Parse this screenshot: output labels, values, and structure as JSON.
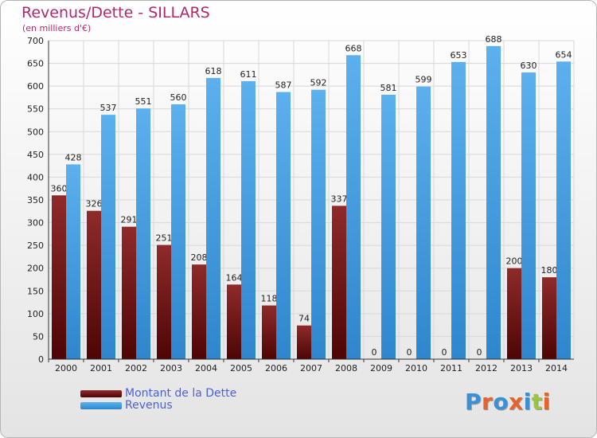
{
  "title": "Revenus/Dette - SILLARS",
  "subtitle": "(en milliers d'€)",
  "colors": {
    "title": "#b0286e",
    "dette": "#6e1010",
    "revenus": "#4da5e8",
    "legend_text": "#4a62d8"
  },
  "logo": {
    "text": "Proxiti",
    "letters": [
      "P",
      "r",
      "o",
      "x",
      "i",
      "t",
      "i"
    ],
    "colors": [
      "#3a8fd9",
      "#e8632a",
      "#3a8fd9",
      "#e8632a",
      "#3a8fd9",
      "#9bc53d",
      "#e8632a"
    ]
  },
  "legend": [
    {
      "label": "Montant de la Dette",
      "color_key": "dette"
    },
    {
      "label": "Revenus",
      "color_key": "revenus"
    }
  ],
  "chart_data": {
    "type": "bar",
    "title": "Revenus/Dette - SILLARS",
    "subtitle": "(en milliers d'€)",
    "xlabel": "",
    "ylabel": "",
    "ylim": [
      0,
      700
    ],
    "yticks": [
      0,
      50,
      100,
      150,
      200,
      250,
      300,
      350,
      400,
      450,
      500,
      550,
      600,
      650,
      700
    ],
    "grid": true,
    "legend_position": "bottom-left",
    "categories": [
      "2000",
      "2001",
      "2002",
      "2003",
      "2004",
      "2005",
      "2006",
      "2007",
      "2008",
      "2009",
      "2010",
      "2011",
      "2012",
      "2013",
      "2014"
    ],
    "series": [
      {
        "name": "Montant de la Dette",
        "values": [
          360,
          326,
          291,
          251,
          208,
          164,
          118,
          74,
          337,
          0,
          0,
          0,
          0,
          200,
          180
        ]
      },
      {
        "name": "Revenus",
        "values": [
          428,
          537,
          551,
          560,
          618,
          611,
          587,
          592,
          668,
          581,
          599,
          653,
          688,
          630,
          654
        ]
      }
    ]
  }
}
